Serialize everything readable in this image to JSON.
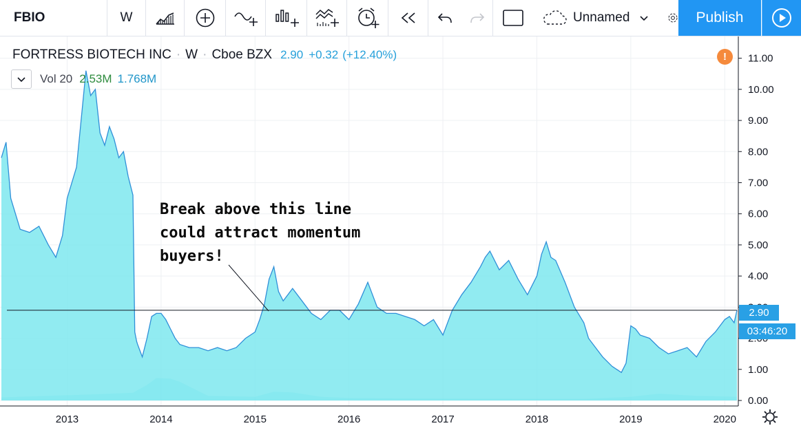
{
  "toolbar": {
    "symbol": "FBIO",
    "interval": "W",
    "layout_name": "Unnamed",
    "publish_label": "Publish",
    "icons": [
      "bar-style-icon",
      "compare-icon",
      "indicators-icon",
      "financials-icon",
      "templates-icon",
      "alert-icon",
      "replay-icon",
      "undo-icon",
      "redo-icon",
      "fullscreen-icon",
      "cloud-save-icon",
      "chevron-down-icon",
      "settings-icon",
      "play-icon"
    ]
  },
  "legend": {
    "name": "FORTRESS BIOTECH INC",
    "interval": "W",
    "exchange": "Cboe BZX",
    "price": "2.90",
    "change": "+0.32",
    "change_pct": "(+12.40%)",
    "volume_label": "Vol 20",
    "volume_value": "2.53M",
    "volume_ma": "1.768M",
    "alert_mark": "!"
  },
  "annotation": "Break above this line\ncould attract momentum\nbuyers!",
  "price_tag": "2.90",
  "countdown": "03:46:20",
  "colors": {
    "accent": "#2196f3",
    "area": "#7ee8ee",
    "line": "#2f8fd8",
    "alert": "#f58a3c"
  },
  "chart_data": {
    "type": "area",
    "title": "FORTRESS BIOTECH INC · W · Cboe BZX",
    "y_ticks": [
      "11.00",
      "10.00",
      "9.00",
      "8.00",
      "7.00",
      "6.00",
      "5.00",
      "4.00",
      "3.00",
      "2.00",
      "1.00",
      "0.00"
    ],
    "x_ticks": [
      "2013",
      "2014",
      "2015",
      "2016",
      "2017",
      "2018",
      "2019",
      "2020"
    ],
    "ylim": [
      0,
      11.5
    ],
    "xlim": [
      2012.3,
      2020.13
    ],
    "horizontal_line": 2.9,
    "series": [
      {
        "x": [
          2012.3,
          2012.35,
          2012.4,
          2012.5,
          2012.6,
          2012.7,
          2012.8,
          2012.88,
          2012.95,
          2013.0,
          2013.1,
          2013.2,
          2013.25,
          2013.3,
          2013.35,
          2013.4,
          2013.45,
          2013.5,
          2013.55,
          2013.6,
          2013.65,
          2013.7,
          2013.72,
          2013.74,
          2013.75,
          2013.8,
          2013.85,
          2013.9,
          2013.95,
          2014.0,
          2014.05,
          2014.1,
          2014.15,
          2014.2,
          2014.3,
          2014.4,
          2014.5,
          2014.6,
          2014.7,
          2014.8,
          2014.9,
          2015.0,
          2015.05,
          2015.1,
          2015.15,
          2015.2,
          2015.25,
          2015.3,
          2015.4,
          2015.5,
          2015.6,
          2015.7,
          2015.8,
          2015.9,
          2016.0,
          2016.1,
          2016.2,
          2016.3,
          2016.4,
          2016.5,
          2016.6,
          2016.7,
          2016.8,
          2016.9,
          2017.0,
          2017.1,
          2017.2,
          2017.3,
          2017.4,
          2017.45,
          2017.5,
          2017.6,
          2017.7,
          2017.8,
          2017.9,
          2018.0,
          2018.05,
          2018.1,
          2018.15,
          2018.2,
          2018.3,
          2018.4,
          2018.5,
          2018.55,
          2018.6,
          2018.7,
          2018.8,
          2018.85,
          2018.9,
          2018.95,
          2019.0,
          2019.05,
          2019.1,
          2019.2,
          2019.3,
          2019.4,
          2019.5,
          2019.6,
          2019.7,
          2019.8,
          2019.9,
          2020.0,
          2020.05,
          2020.1,
          2020.13
        ],
        "y": [
          7.8,
          8.3,
          6.5,
          5.5,
          5.4,
          5.6,
          5.0,
          4.6,
          5.3,
          6.5,
          7.5,
          10.6,
          9.8,
          10.0,
          8.6,
          8.2,
          8.8,
          8.4,
          7.8,
          8.0,
          7.2,
          6.6,
          2.2,
          1.9,
          1.8,
          1.4,
          2.0,
          2.7,
          2.8,
          2.8,
          2.6,
          2.3,
          2.0,
          1.8,
          1.7,
          1.7,
          1.6,
          1.7,
          1.6,
          1.7,
          2.0,
          2.2,
          2.6,
          3.1,
          3.9,
          4.3,
          3.5,
          3.2,
          3.6,
          3.2,
          2.8,
          2.6,
          2.9,
          2.9,
          2.6,
          3.1,
          3.8,
          3.0,
          2.8,
          2.8,
          2.7,
          2.6,
          2.4,
          2.6,
          2.1,
          2.9,
          3.4,
          3.8,
          4.3,
          4.6,
          4.8,
          4.2,
          4.5,
          3.9,
          3.4,
          4.0,
          4.7,
          5.1,
          4.6,
          4.5,
          3.8,
          3.0,
          2.5,
          2.0,
          1.8,
          1.4,
          1.1,
          1.0,
          0.9,
          1.2,
          2.4,
          2.3,
          2.1,
          2.0,
          1.7,
          1.5,
          1.6,
          1.7,
          1.4,
          1.9,
          2.2,
          2.6,
          2.7,
          2.5,
          2.9
        ]
      }
    ],
    "volume": {
      "x": [
        2012.3,
        2012.8,
        2013.3,
        2013.7,
        2013.85,
        2013.95,
        2014.1,
        2014.2,
        2014.3,
        2014.5,
        2015.0,
        2015.2,
        2015.4,
        2015.7,
        2016.0,
        2017.0,
        2018.0,
        2018.5,
        2019.0,
        2019.3,
        2019.7,
        2020.13
      ],
      "y": [
        0.1,
        0.15,
        0.2,
        0.25,
        0.5,
        0.72,
        0.7,
        0.6,
        0.45,
        0.15,
        0.12,
        0.28,
        0.26,
        0.12,
        0.08,
        0.06,
        0.05,
        0.05,
        0.12,
        0.22,
        0.15,
        0.12
      ]
    }
  }
}
